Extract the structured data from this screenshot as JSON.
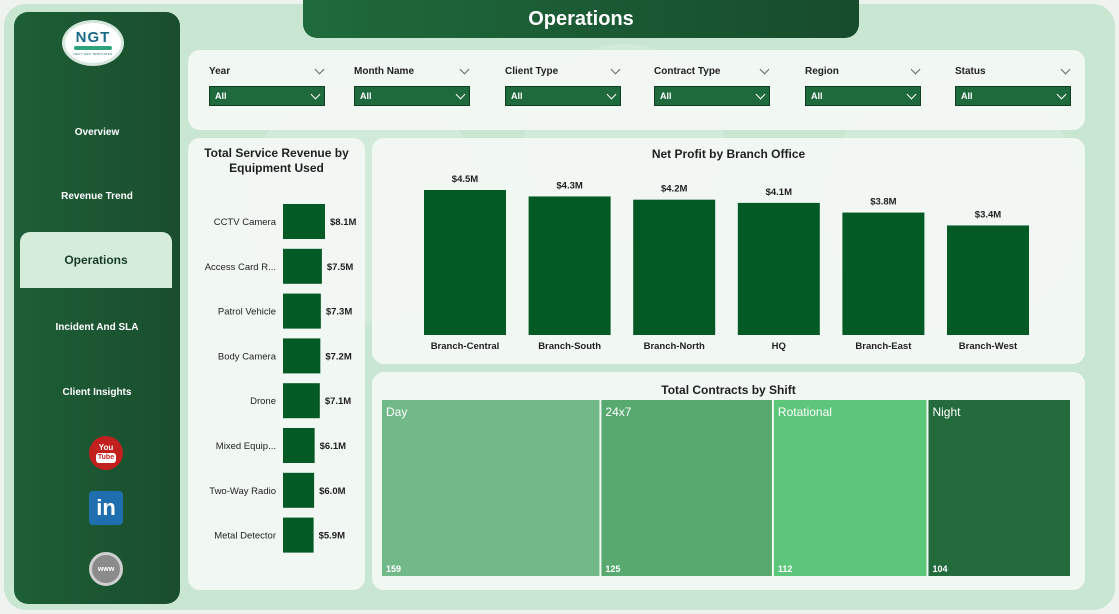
{
  "page": {
    "title": "Operations"
  },
  "logo": {
    "text": "NGT",
    "subtitle": "NEXT GEN TEMPLATES"
  },
  "sidebar": {
    "items": [
      {
        "label": "Overview"
      },
      {
        "label": "Revenue Trend"
      },
      {
        "label": "Operations",
        "active": true
      },
      {
        "label": "Incident And SLA"
      },
      {
        "label": "Client Insights"
      }
    ],
    "social": [
      {
        "icon": "youtube-icon",
        "text": "You",
        "text2": "Tube"
      },
      {
        "icon": "linkedin-icon",
        "text": "in"
      },
      {
        "icon": "website-icon",
        "text": "www"
      }
    ]
  },
  "filters": [
    {
      "label": "Year",
      "value": "All"
    },
    {
      "label": "Month Name",
      "value": "All"
    },
    {
      "label": "Client Type",
      "value": "All"
    },
    {
      "label": "Contract Type",
      "value": "All"
    },
    {
      "label": "Region",
      "value": "All"
    },
    {
      "label": "Status",
      "value": "All"
    }
  ],
  "colors": {
    "dark_green": "#1d5f36",
    "bar_green": "#045a25",
    "accent_light": "#d4ecd9",
    "treemap": [
      "#72b98a",
      "#57a96f",
      "#5cc67b",
      "#236b3c"
    ]
  },
  "chart_data": [
    {
      "type": "bar",
      "orientation": "horizontal",
      "title": "Total Service Revenue by Equipment Used",
      "categories": [
        "CCTV Camera",
        "Access Card R...",
        "Patrol Vehicle",
        "Body Camera",
        "Drone",
        "Mixed Equip...",
        "Two-Way Radio",
        "Metal Detector"
      ],
      "values": [
        8.1,
        7.5,
        7.3,
        7.2,
        7.1,
        6.1,
        6.0,
        5.9
      ],
      "labels": [
        "$8.1M",
        "$7.5M",
        "$7.3M",
        "$7.2M",
        "$7.1M",
        "$6.1M",
        "$6.0M",
        "$5.9M"
      ],
      "xlim": [
        0,
        8.1
      ]
    },
    {
      "type": "bar",
      "title": "Net Profit by Branch Office",
      "categories": [
        "Branch-Central",
        "Branch-South",
        "Branch-North",
        "HQ",
        "Branch-East",
        "Branch-West"
      ],
      "values": [
        4.5,
        4.3,
        4.2,
        4.1,
        3.8,
        3.4
      ],
      "labels": [
        "$4.5M",
        "$4.3M",
        "$4.2M",
        "$4.1M",
        "$3.8M",
        "$3.4M"
      ],
      "ylim": [
        0,
        4.5
      ]
    },
    {
      "type": "treemap",
      "title": "Total Contracts by Shift",
      "categories": [
        "Day",
        "24x7",
        "Rotational",
        "Night"
      ],
      "values": [
        159,
        125,
        112,
        104
      ]
    }
  ]
}
